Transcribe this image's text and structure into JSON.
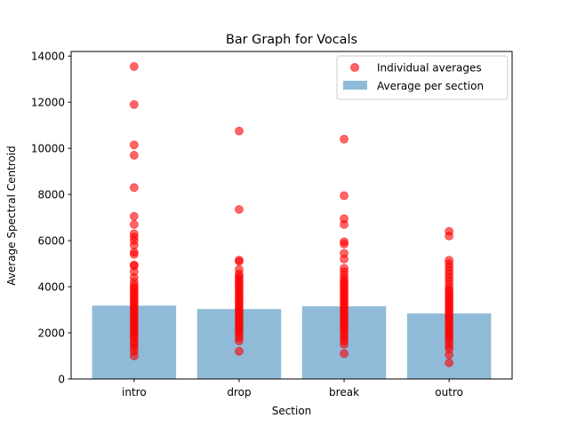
{
  "chart_data": {
    "type": "bar",
    "title": "Bar Graph for Vocals",
    "xlabel": "Section",
    "ylabel": "Average Spectral Centroid",
    "categories": [
      "intro",
      "drop",
      "break",
      "outro"
    ],
    "values": [
      3180,
      3030,
      3150,
      2840
    ],
    "ylim": [
      0,
      14200
    ],
    "yticks": [
      0,
      2000,
      4000,
      6000,
      8000,
      10000,
      12000,
      14000
    ],
    "ytick_labels": [
      "0",
      "2000",
      "4000",
      "6000",
      "8000",
      "10000",
      "12000",
      "14000"
    ],
    "grid": false,
    "legend_position": "top-right",
    "series": [
      {
        "name": "Individual averages",
        "kind": "scatter",
        "color": "#ff0000"
      },
      {
        "name": "Average per section",
        "kind": "bar",
        "color": "#8fbbd9"
      }
    ],
    "scatter": [
      {
        "category": "intro",
        "points": [
          1000,
          1200,
          1350,
          1500,
          1600,
          1750,
          1850,
          1950,
          2050,
          2150,
          2250,
          2350,
          2450,
          2550,
          2650,
          2750,
          2850,
          2950,
          3050,
          3150,
          3250,
          3350,
          3450,
          3550,
          3650,
          3750,
          3850,
          3950,
          4050,
          4200,
          4400,
          4650,
          4900,
          4950,
          5400,
          5500,
          5800,
          6000,
          6150,
          6300,
          6700,
          7050,
          8300,
          9700,
          10150,
          11900,
          13550
        ]
      },
      {
        "category": "drop",
        "points": [
          1200,
          1650,
          1800,
          1950,
          2050,
          2150,
          2250,
          2350,
          2450,
          2550,
          2650,
          2750,
          2850,
          2950,
          3050,
          3150,
          3250,
          3350,
          3450,
          3550,
          3650,
          3750,
          3850,
          3950,
          4050,
          4150,
          4250,
          4350,
          4450,
          4550,
          4750,
          5100,
          5150,
          7350,
          10750
        ]
      },
      {
        "category": "break",
        "points": [
          1100,
          1500,
          1650,
          1800,
          1900,
          2050,
          2150,
          2250,
          2350,
          2450,
          2550,
          2650,
          2750,
          2850,
          2950,
          3050,
          3150,
          3250,
          3350,
          3450,
          3550,
          3650,
          3750,
          3850,
          3950,
          4050,
          4150,
          4250,
          4350,
          4500,
          4650,
          4800,
          5200,
          5450,
          5850,
          5950,
          6700,
          6950,
          7950,
          10400
        ]
      },
      {
        "category": "outro",
        "points": [
          700,
          1050,
          1300,
          1450,
          1600,
          1750,
          1850,
          1950,
          2050,
          2150,
          2250,
          2350,
          2450,
          2550,
          2650,
          2750,
          2850,
          2950,
          3050,
          3150,
          3250,
          3350,
          3450,
          3550,
          3650,
          3750,
          3850,
          3950,
          4100,
          4250,
          4400,
          4550,
          4700,
          4850,
          5000,
          5150,
          6200,
          6400
        ]
      }
    ]
  }
}
